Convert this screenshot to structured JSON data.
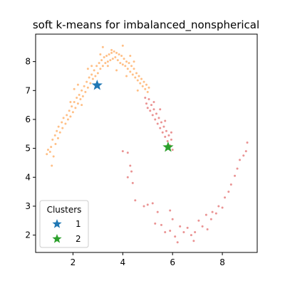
{
  "chart_data": {
    "type": "scatter",
    "title": "soft k-means for imbalanced_nonspherical",
    "xlabel": "",
    "ylabel": "",
    "xlim": [
      0.5,
      9.4
    ],
    "ylim": [
      1.4,
      8.95
    ],
    "xticks": [
      2,
      4,
      6,
      8
    ],
    "yticks": [
      2,
      3,
      4,
      5,
      6,
      7,
      8
    ],
    "grid": false,
    "colors": {
      "cluster_1": "#1f77b4",
      "cluster_2": "#2ca02c",
      "points_orange": "#ff7f0e",
      "points_red": "#d62728"
    },
    "legend": {
      "title": "Clusters",
      "placement": "lower-left",
      "entries": [
        {
          "label": "1",
          "color": "#1f77b4",
          "marker": "star"
        },
        {
          "label": "2",
          "color": "#2ca02c",
          "marker": "star"
        }
      ]
    },
    "centers": [
      {
        "name": "1",
        "x": 2.97,
        "y": 7.18,
        "color": "#1f77b4"
      },
      {
        "name": "2",
        "x": 5.82,
        "y": 5.04,
        "color": "#2ca02c"
      }
    ],
    "point_groups": [
      {
        "color": "#ff7f0e",
        "points": [
          [
            0.95,
            4.8
          ],
          [
            1.0,
            4.95
          ],
          [
            1.08,
            4.88
          ],
          [
            1.12,
            5.05
          ],
          [
            1.18,
            5.3
          ],
          [
            1.22,
            4.72
          ],
          [
            1.28,
            5.45
          ],
          [
            1.3,
            5.15
          ],
          [
            1.35,
            5.6
          ],
          [
            1.4,
            5.35
          ],
          [
            1.42,
            5.75
          ],
          [
            1.48,
            5.55
          ],
          [
            1.55,
            5.9
          ],
          [
            1.58,
            5.7
          ],
          [
            1.62,
            6.05
          ],
          [
            1.7,
            5.85
          ],
          [
            1.75,
            6.15
          ],
          [
            1.8,
            6.0
          ],
          [
            1.85,
            6.3
          ],
          [
            1.9,
            6.1
          ],
          [
            1.95,
            6.45
          ],
          [
            2.0,
            6.25
          ],
          [
            2.05,
            6.6
          ],
          [
            2.1,
            6.4
          ],
          [
            2.15,
            6.75
          ],
          [
            2.2,
            6.55
          ],
          [
            2.25,
            6.85
          ],
          [
            2.3,
            6.7
          ],
          [
            2.35,
            7.0
          ],
          [
            2.4,
            6.8
          ],
          [
            2.45,
            7.15
          ],
          [
            2.5,
            6.95
          ],
          [
            2.55,
            7.3
          ],
          [
            2.6,
            7.1
          ],
          [
            2.65,
            7.45
          ],
          [
            2.7,
            7.25
          ],
          [
            2.75,
            7.55
          ],
          [
            2.8,
            7.4
          ],
          [
            2.85,
            7.7
          ],
          [
            2.9,
            7.5
          ],
          [
            2.95,
            7.85
          ],
          [
            3.0,
            7.6
          ],
          [
            3.05,
            7.95
          ],
          [
            3.1,
            7.75
          ],
          [
            3.15,
            8.05
          ],
          [
            3.2,
            7.85
          ],
          [
            3.25,
            8.15
          ],
          [
            3.3,
            7.95
          ],
          [
            3.35,
            8.2
          ],
          [
            3.4,
            8.0
          ],
          [
            3.45,
            8.25
          ],
          [
            3.5,
            8.05
          ],
          [
            3.55,
            8.3
          ],
          [
            3.6,
            8.1
          ],
          [
            3.65,
            8.35
          ],
          [
            3.7,
            8.15
          ],
          [
            3.75,
            8.3
          ],
          [
            3.8,
            8.05
          ],
          [
            3.85,
            8.25
          ],
          [
            3.9,
            7.95
          ],
          [
            3.95,
            8.2
          ],
          [
            4.0,
            7.9
          ],
          [
            4.05,
            8.1
          ],
          [
            4.1,
            7.85
          ],
          [
            4.15,
            8.0
          ],
          [
            4.2,
            7.75
          ],
          [
            4.25,
            7.95
          ],
          [
            4.3,
            7.65
          ],
          [
            4.35,
            7.85
          ],
          [
            4.4,
            7.55
          ],
          [
            4.45,
            7.75
          ],
          [
            4.5,
            7.45
          ],
          [
            4.55,
            7.6
          ],
          [
            4.6,
            7.35
          ],
          [
            4.65,
            7.5
          ],
          [
            4.7,
            7.25
          ],
          [
            4.75,
            7.4
          ],
          [
            4.8,
            7.15
          ],
          [
            4.85,
            7.3
          ],
          [
            4.9,
            7.05
          ],
          [
            4.95,
            7.2
          ],
          [
            5.0,
            6.95
          ],
          [
            5.05,
            7.1
          ],
          [
            1.15,
            4.4
          ],
          [
            2.05,
            7.05
          ],
          [
            2.6,
            7.75
          ],
          [
            3.2,
            8.5
          ],
          [
            3.55,
            8.4
          ],
          [
            4.0,
            8.55
          ],
          [
            4.3,
            8.2
          ],
          [
            2.75,
            7.85
          ],
          [
            3.1,
            8.25
          ],
          [
            3.75,
            7.7
          ],
          [
            4.15,
            7.5
          ],
          [
            4.6,
            7.0
          ],
          [
            2.35,
            6.5
          ],
          [
            1.9,
            6.6
          ],
          [
            3.4,
            7.85
          ],
          [
            4.45,
            8.0
          ],
          [
            2.2,
            7.2
          ]
        ]
      },
      {
        "color": "#d62728",
        "points": [
          [
            4.9,
            6.75
          ],
          [
            4.95,
            6.55
          ],
          [
            5.0,
            6.4
          ],
          [
            5.05,
            6.7
          ],
          [
            5.1,
            6.3
          ],
          [
            5.15,
            6.5
          ],
          [
            5.2,
            6.15
          ],
          [
            5.25,
            6.35
          ],
          [
            5.3,
            6.0
          ],
          [
            5.35,
            6.2
          ],
          [
            5.4,
            5.85
          ],
          [
            5.45,
            6.05
          ],
          [
            5.5,
            5.7
          ],
          [
            5.55,
            5.9
          ],
          [
            5.6,
            5.55
          ],
          [
            5.65,
            5.75
          ],
          [
            5.7,
            5.4
          ],
          [
            5.75,
            5.6
          ],
          [
            5.8,
            5.25
          ],
          [
            5.85,
            5.45
          ],
          [
            5.9,
            5.1
          ],
          [
            5.95,
            5.3
          ],
          [
            6.0,
            4.95
          ],
          [
            5.25,
            6.6
          ],
          [
            5.5,
            6.35
          ],
          [
            5.7,
            5.95
          ],
          [
            5.95,
            5.55
          ],
          [
            4.0,
            4.9
          ],
          [
            4.2,
            4.85
          ],
          [
            4.35,
            4.2
          ],
          [
            4.3,
            4.4
          ],
          [
            4.4,
            3.8
          ],
          [
            4.5,
            3.2
          ],
          [
            4.2,
            4.0
          ],
          [
            4.85,
            3.0
          ],
          [
            5.0,
            3.05
          ],
          [
            5.2,
            3.1
          ],
          [
            5.4,
            2.8
          ],
          [
            5.55,
            2.35
          ],
          [
            5.7,
            2.1
          ],
          [
            5.9,
            2.15
          ],
          [
            6.1,
            1.95
          ],
          [
            6.2,
            1.75
          ],
          [
            6.3,
            2.3
          ],
          [
            6.45,
            2.1
          ],
          [
            6.6,
            2.25
          ],
          [
            6.75,
            2.0
          ],
          [
            6.85,
            1.8
          ],
          [
            6.9,
            2.1
          ],
          [
            7.05,
            2.5
          ],
          [
            7.2,
            2.3
          ],
          [
            7.35,
            2.7
          ],
          [
            7.4,
            2.2
          ],
          [
            7.55,
            2.55
          ],
          [
            7.6,
            2.8
          ],
          [
            7.75,
            2.75
          ],
          [
            7.85,
            3.0
          ],
          [
            8.0,
            2.95
          ],
          [
            8.1,
            3.3
          ],
          [
            8.25,
            3.5
          ],
          [
            8.35,
            3.75
          ],
          [
            8.5,
            4.05
          ],
          [
            8.6,
            4.3
          ],
          [
            8.7,
            4.6
          ],
          [
            8.85,
            4.75
          ],
          [
            8.95,
            4.9
          ],
          [
            9.0,
            5.2
          ],
          [
            5.9,
            2.85
          ],
          [
            6.0,
            2.55
          ],
          [
            5.3,
            2.4
          ]
        ]
      }
    ]
  }
}
